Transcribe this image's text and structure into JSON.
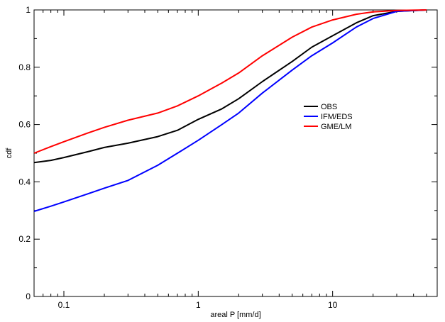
{
  "chart_data": {
    "type": "line",
    "title": "",
    "xlabel": "areal P  [mm/d]",
    "ylabel": "cdf",
    "xscale": "log",
    "xlim": [
      0.06,
      60
    ],
    "ylim": [
      0,
      1
    ],
    "x_ticks": [
      {
        "value": 0.1,
        "label": "0.1"
      },
      {
        "value": 1,
        "label": "1"
      },
      {
        "value": 10,
        "label": "10"
      }
    ],
    "y_ticks": [
      {
        "value": 0,
        "label": "0"
      },
      {
        "value": 0.2,
        "label": "0.2"
      },
      {
        "value": 0.4,
        "label": "0.4"
      },
      {
        "value": 0.6,
        "label": "0.6"
      },
      {
        "value": 0.8,
        "label": "0.8"
      },
      {
        "value": 1,
        "label": "1"
      }
    ],
    "grid": false,
    "legend_position": "right-center",
    "series": [
      {
        "name": "OBS",
        "color": "#000000",
        "x": [
          0.06,
          0.08,
          0.1,
          0.15,
          0.2,
          0.3,
          0.5,
          0.7,
          1,
          1.5,
          2,
          3,
          5,
          7,
          10,
          15,
          20,
          30,
          50
        ],
        "y": [
          0.467,
          0.475,
          0.485,
          0.505,
          0.52,
          0.535,
          0.558,
          0.58,
          0.618,
          0.655,
          0.69,
          0.75,
          0.82,
          0.87,
          0.91,
          0.955,
          0.98,
          0.995,
          1.0
        ]
      },
      {
        "name": "IFM/EDS",
        "color": "#0000ff",
        "x": [
          0.06,
          0.08,
          0.1,
          0.15,
          0.2,
          0.3,
          0.5,
          0.7,
          1,
          1.5,
          2,
          3,
          5,
          7,
          10,
          15,
          20,
          30,
          50
        ],
        "y": [
          0.297,
          0.315,
          0.33,
          0.358,
          0.378,
          0.405,
          0.458,
          0.5,
          0.545,
          0.6,
          0.64,
          0.71,
          0.79,
          0.84,
          0.885,
          0.94,
          0.97,
          0.995,
          1.0
        ]
      },
      {
        "name": "GME/LM",
        "color": "#ff0000",
        "x": [
          0.06,
          0.08,
          0.1,
          0.15,
          0.2,
          0.3,
          0.5,
          0.7,
          1,
          1.5,
          2,
          3,
          5,
          7,
          10,
          15,
          20,
          30,
          50
        ],
        "y": [
          0.5,
          0.523,
          0.54,
          0.57,
          0.59,
          0.615,
          0.64,
          0.665,
          0.7,
          0.745,
          0.78,
          0.84,
          0.905,
          0.94,
          0.965,
          0.985,
          0.993,
          0.998,
          1.0
        ]
      }
    ]
  }
}
